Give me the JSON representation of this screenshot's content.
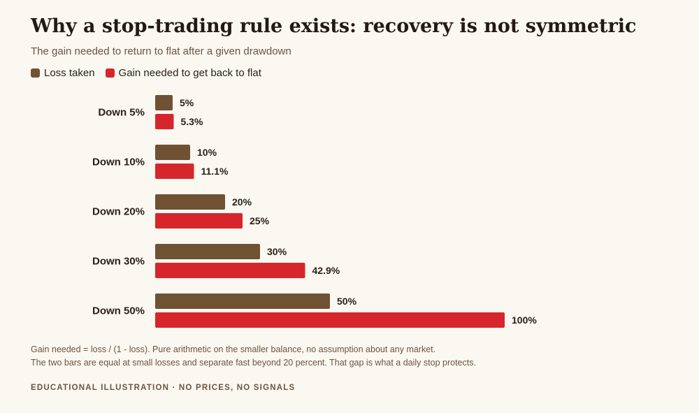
{
  "header": {
    "title": "Why a stop-trading rule exists: recovery is not symmetric",
    "subtitle": "The gain needed to return to flat after a given drawdown"
  },
  "colors": {
    "loss": "#6f5133",
    "gain": "#d7262b",
    "background": "#fbf7f1"
  },
  "chart_data": {
    "type": "bar",
    "orientation": "horizontal",
    "title": "Why a stop-trading rule exists: recovery is not symmetric",
    "subtitle": "The gain needed to return to flat after a given drawdown",
    "categories": [
      "Down 5%",
      "Down 10%",
      "Down 20%",
      "Down 30%",
      "Down 50%"
    ],
    "series": [
      {
        "name": "Loss taken",
        "values": [
          5,
          10,
          20,
          30,
          50
        ],
        "labels": [
          "5%",
          "10%",
          "20%",
          "30%",
          "50%"
        ]
      },
      {
        "name": "Gain needed to get back to flat",
        "values": [
          5.3,
          11.1,
          25,
          42.9,
          100
        ],
        "labels": [
          "5.3%",
          "11.1%",
          "25%",
          "42.9%",
          "100%"
        ]
      }
    ],
    "xlim": [
      0,
      100
    ],
    "grid": false,
    "legend": "top-left"
  },
  "notes": {
    "line1": "Gain needed = loss / (1 - loss). Pure arithmetic on the smaller balance, no assumption about any market.",
    "line2": "The two bars are equal at small losses and separate fast beyond 20 percent. That gap is what a daily stop protects."
  },
  "footer": "EDUCATIONAL ILLUSTRATION · NO PRICES, NO SIGNALS"
}
